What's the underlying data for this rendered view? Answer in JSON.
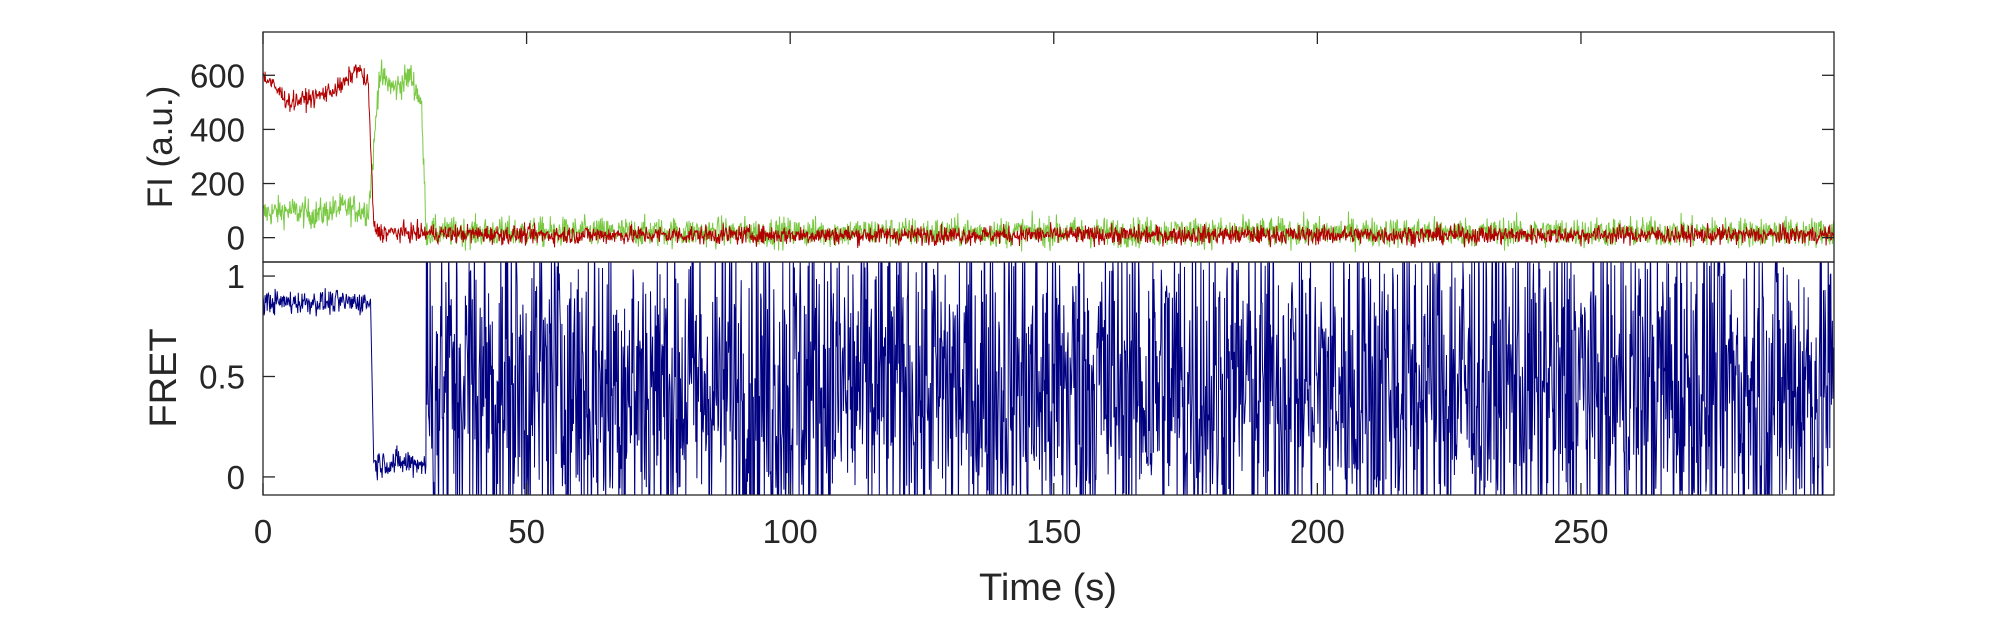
{
  "chart_data": [
    {
      "type": "line",
      "panel": "top",
      "ylabel": "FI (a.u.)",
      "xlabel": "",
      "xlim": [
        0,
        298
      ],
      "ylim": [
        -90,
        760
      ],
      "xticks": [
        0,
        50,
        100,
        150,
        200,
        250
      ],
      "yticks": [
        0,
        200,
        400,
        600
      ],
      "ytick_labels": [
        "0",
        "200",
        "400",
        "600"
      ],
      "grid": false,
      "colors": {
        "donor": "#7ac943",
        "acceptor": "#b20000"
      },
      "series": [
        {
          "color": "#7ac943",
          "x": [
            0,
            5,
            10,
            15,
            20,
            21,
            22,
            25,
            28,
            30,
            31,
            50,
            100,
            118,
            150,
            200,
            250,
            280,
            298
          ],
          "y": [
            90,
            100,
            85,
            110,
            100,
            320,
            600,
            550,
            600,
            500,
            20,
            20,
            20,
            20,
            20,
            20,
            20,
            20,
            20
          ],
          "noise": 55
        },
        {
          "color": "#b20000",
          "x": [
            0,
            5,
            10,
            15,
            18,
            20,
            21,
            22,
            50,
            100,
            150,
            200,
            250,
            298
          ],
          "y": [
            600,
            500,
            520,
            560,
            630,
            560,
            40,
            20,
            10,
            10,
            10,
            10,
            10,
            10
          ],
          "noise": 35
        }
      ]
    },
    {
      "type": "line",
      "panel": "bottom",
      "ylabel": "FRET",
      "xlabel": "Time (s)",
      "xlim": [
        0,
        298
      ],
      "ylim": [
        -0.09,
        1.07
      ],
      "xticks": [
        0,
        50,
        100,
        150,
        200,
        250
      ],
      "xtick_labels": [
        "0",
        "50",
        "100",
        "150",
        "200",
        "250"
      ],
      "yticks": [
        0,
        0.5,
        1
      ],
      "ytick_labels": [
        "0",
        "0.5",
        "1"
      ],
      "grid": false,
      "series": [
        {
          "color": "#000080",
          "segments": [
            {
              "x": [
                0,
                20.5
              ],
              "y": [
                0.87,
                0.87
              ],
              "noise": 0.06
            },
            {
              "x": [
                21,
                31
              ],
              "y": [
                0.07,
                0.07
              ],
              "noise": 0.07
            },
            {
              "x": [
                31,
                298
              ],
              "y": [
                0.45,
                0.45
              ],
              "noise": 0.9
            }
          ]
        }
      ]
    }
  ]
}
